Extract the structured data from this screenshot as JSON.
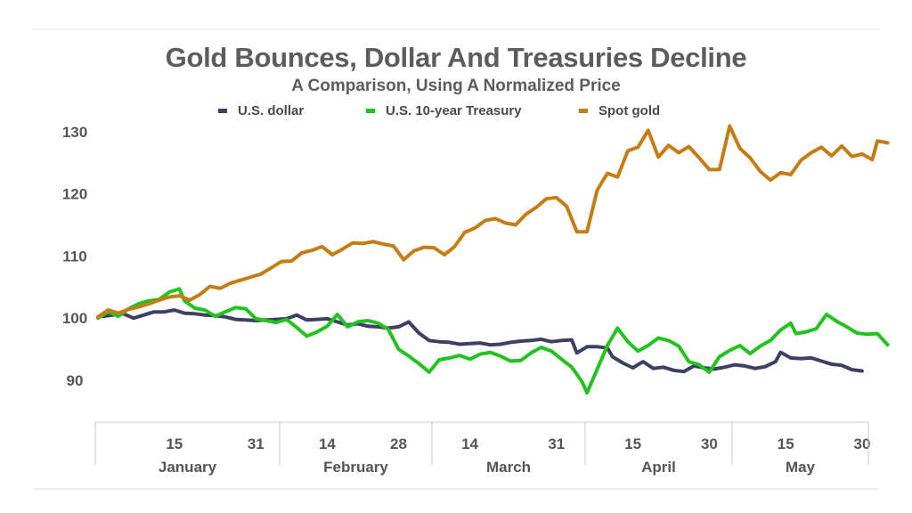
{
  "chart_data": {
    "type": "line",
    "title": "Gold Bounces, Dollar And Treasuries Decline",
    "subtitle": "A Comparison, Using A Normalized Price",
    "ylim": [
      85,
      132
    ],
    "yticks": [
      90,
      100,
      110,
      120,
      130
    ],
    "x_domain_days": [
      0,
      150
    ],
    "x_ticks": [
      {
        "label": "15",
        "day": 15
      },
      {
        "label": "31",
        "day": 31
      },
      {
        "label": "14",
        "day": 45
      },
      {
        "label": "28",
        "day": 59
      },
      {
        "label": "14",
        "day": 73
      },
      {
        "label": "31",
        "day": 90
      },
      {
        "label": "15",
        "day": 105
      },
      {
        "label": "30",
        "day": 120
      },
      {
        "label": "15",
        "day": 135
      },
      {
        "label": "30",
        "day": 150
      }
    ],
    "months": [
      {
        "label": "January",
        "start": 0,
        "end": 31
      },
      {
        "label": "February",
        "start": 31,
        "end": 59
      },
      {
        "label": "March",
        "start": 59,
        "end": 90
      },
      {
        "label": "April",
        "start": 90,
        "end": 120
      },
      {
        "label": "May",
        "start": 120,
        "end": 151
      }
    ],
    "legend_position": "top-center",
    "grid": false,
    "series": [
      {
        "name": "U.S. dollar",
        "color": "#3d3f63",
        "points": [
          [
            1,
            100.3
          ],
          [
            3,
            100.5
          ],
          [
            5,
            100.7
          ],
          [
            7,
            100.0
          ],
          [
            9,
            100.5
          ],
          [
            11,
            101.0
          ],
          [
            13,
            101.0
          ],
          [
            15,
            101.3
          ],
          [
            17,
            100.8
          ],
          [
            19,
            100.7
          ],
          [
            21,
            100.5
          ],
          [
            23,
            100.4
          ],
          [
            25,
            100.2
          ],
          [
            27,
            99.8
          ],
          [
            29,
            99.7
          ],
          [
            31,
            99.6
          ],
          [
            33,
            99.7
          ],
          [
            35,
            99.8
          ],
          [
            37,
            99.9
          ],
          [
            39,
            100.5
          ],
          [
            41,
            99.7
          ],
          [
            43,
            99.8
          ],
          [
            45,
            99.9
          ],
          [
            47,
            99.4
          ],
          [
            49,
            98.9
          ],
          [
            51,
            99.1
          ],
          [
            53,
            98.7
          ],
          [
            55,
            98.6
          ],
          [
            57,
            98.4
          ],
          [
            59,
            98.6
          ],
          [
            61,
            99.4
          ],
          [
            63,
            97.6
          ],
          [
            65,
            96.4
          ],
          [
            67,
            96.2
          ],
          [
            69,
            96.1
          ],
          [
            71,
            95.8
          ],
          [
            73,
            95.9
          ],
          [
            75,
            96.0
          ],
          [
            77,
            95.7
          ],
          [
            79,
            95.8
          ],
          [
            81,
            96.1
          ],
          [
            83,
            96.3
          ],
          [
            85,
            96.4
          ],
          [
            87,
            96.6
          ],
          [
            89,
            96.2
          ],
          [
            91,
            96.4
          ],
          [
            93,
            96.5
          ],
          [
            94,
            94.4
          ],
          [
            96,
            95.4
          ],
          [
            98,
            95.4
          ],
          [
            100,
            95.2
          ],
          [
            101,
            93.8
          ],
          [
            103,
            92.8
          ],
          [
            105,
            92.0
          ],
          [
            107,
            93.0
          ],
          [
            109,
            91.9
          ],
          [
            111,
            92.1
          ],
          [
            113,
            91.6
          ],
          [
            115,
            91.4
          ],
          [
            117,
            92.3
          ],
          [
            119,
            92.0
          ],
          [
            121,
            91.8
          ],
          [
            123,
            92.1
          ],
          [
            125,
            92.5
          ],
          [
            127,
            92.3
          ],
          [
            129,
            91.9
          ],
          [
            131,
            92.2
          ],
          [
            133,
            93.0
          ],
          [
            134,
            94.5
          ],
          [
            136,
            93.6
          ],
          [
            138,
            93.5
          ],
          [
            140,
            93.6
          ],
          [
            142,
            93.1
          ],
          [
            144,
            92.6
          ],
          [
            146,
            92.4
          ],
          [
            148,
            91.7
          ],
          [
            150,
            91.5
          ]
        ]
      },
      {
        "name": "U.S. 10-year Treasury",
        "color": "#22c21f",
        "points": [
          [
            0,
            100.0
          ],
          [
            2,
            101.0
          ],
          [
            4,
            100.3
          ],
          [
            6,
            101.5
          ],
          [
            8,
            102.3
          ],
          [
            10,
            102.8
          ],
          [
            12,
            103.0
          ],
          [
            14,
            104.2
          ],
          [
            16,
            104.7
          ],
          [
            17,
            102.8
          ],
          [
            19,
            101.6
          ],
          [
            21,
            101.3
          ],
          [
            23,
            100.3
          ],
          [
            25,
            101.0
          ],
          [
            27,
            101.7
          ],
          [
            29,
            101.5
          ],
          [
            31,
            99.9
          ],
          [
            33,
            99.6
          ],
          [
            35,
            99.3
          ],
          [
            37,
            99.8
          ],
          [
            39,
            98.5
          ],
          [
            41,
            97.1
          ],
          [
            43,
            97.8
          ],
          [
            45,
            98.7
          ],
          [
            47,
            100.6
          ],
          [
            49,
            98.6
          ],
          [
            51,
            99.4
          ],
          [
            53,
            99.6
          ],
          [
            55,
            99.2
          ],
          [
            57,
            98.2
          ],
          [
            59,
            95.0
          ],
          [
            61,
            93.9
          ],
          [
            63,
            92.7
          ],
          [
            65,
            91.3
          ],
          [
            67,
            93.3
          ],
          [
            69,
            93.6
          ],
          [
            71,
            94.0
          ],
          [
            73,
            93.4
          ],
          [
            75,
            94.2
          ],
          [
            77,
            94.5
          ],
          [
            79,
            93.9
          ],
          [
            81,
            93.1
          ],
          [
            83,
            93.2
          ],
          [
            85,
            94.4
          ],
          [
            87,
            95.3
          ],
          [
            89,
            94.7
          ],
          [
            91,
            93.4
          ],
          [
            93,
            92.1
          ],
          [
            95,
            89.8
          ],
          [
            96,
            88.0
          ],
          [
            98,
            91.8
          ],
          [
            100,
            95.6
          ],
          [
            102,
            98.4
          ],
          [
            104,
            96.2
          ],
          [
            106,
            94.7
          ],
          [
            108,
            95.6
          ],
          [
            110,
            96.8
          ],
          [
            112,
            96.4
          ],
          [
            114,
            95.5
          ],
          [
            116,
            93.0
          ],
          [
            118,
            92.5
          ],
          [
            120,
            91.3
          ],
          [
            122,
            93.8
          ],
          [
            124,
            94.8
          ],
          [
            126,
            95.6
          ],
          [
            128,
            94.3
          ],
          [
            130,
            95.5
          ],
          [
            132,
            96.4
          ],
          [
            134,
            98.1
          ],
          [
            136,
            99.2
          ],
          [
            137,
            97.5
          ],
          [
            139,
            97.8
          ],
          [
            141,
            98.3
          ],
          [
            143,
            100.6
          ],
          [
            145,
            99.5
          ],
          [
            147,
            98.6
          ],
          [
            149,
            97.6
          ],
          [
            151,
            97.4
          ],
          [
            153,
            97.5
          ],
          [
            155,
            95.7
          ]
        ]
      },
      {
        "name": "Spot gold",
        "color": "#c47d12",
        "points": [
          [
            0,
            100.2
          ],
          [
            2,
            101.3
          ],
          [
            4,
            100.8
          ],
          [
            6,
            101.4
          ],
          [
            8,
            101.8
          ],
          [
            10,
            102.3
          ],
          [
            12,
            102.9
          ],
          [
            14,
            103.4
          ],
          [
            16,
            103.6
          ],
          [
            18,
            102.9
          ],
          [
            20,
            103.8
          ],
          [
            22,
            105.1
          ],
          [
            24,
            104.8
          ],
          [
            26,
            105.6
          ],
          [
            28,
            106.1
          ],
          [
            30,
            106.6
          ],
          [
            32,
            107.1
          ],
          [
            34,
            108.1
          ],
          [
            36,
            109.1
          ],
          [
            38,
            109.2
          ],
          [
            40,
            110.5
          ],
          [
            42,
            110.9
          ],
          [
            44,
            111.5
          ],
          [
            46,
            110.2
          ],
          [
            48,
            111.1
          ],
          [
            50,
            112.1
          ],
          [
            52,
            112.0
          ],
          [
            54,
            112.3
          ],
          [
            56,
            111.9
          ],
          [
            58,
            111.6
          ],
          [
            60,
            109.4
          ],
          [
            62,
            110.8
          ],
          [
            64,
            111.4
          ],
          [
            66,
            111.3
          ],
          [
            68,
            110.2
          ],
          [
            70,
            111.5
          ],
          [
            72,
            113.8
          ],
          [
            74,
            114.5
          ],
          [
            76,
            115.7
          ],
          [
            78,
            116.0
          ],
          [
            80,
            115.3
          ],
          [
            82,
            115.0
          ],
          [
            84,
            116.7
          ],
          [
            86,
            117.8
          ],
          [
            88,
            119.2
          ],
          [
            90,
            119.4
          ],
          [
            92,
            118.0
          ],
          [
            94,
            113.9
          ],
          [
            96,
            113.9
          ],
          [
            98,
            120.6
          ],
          [
            100,
            123.3
          ],
          [
            102,
            122.7
          ],
          [
            104,
            126.9
          ],
          [
            106,
            127.5
          ],
          [
            108,
            130.2
          ],
          [
            110,
            125.9
          ],
          [
            112,
            127.8
          ],
          [
            114,
            126.6
          ],
          [
            116,
            127.6
          ],
          [
            118,
            125.8
          ],
          [
            120,
            123.9
          ],
          [
            122,
            123.9
          ],
          [
            124,
            130.9
          ],
          [
            126,
            127.3
          ],
          [
            128,
            125.8
          ],
          [
            130,
            123.6
          ],
          [
            132,
            122.2
          ],
          [
            134,
            123.4
          ],
          [
            136,
            123.1
          ],
          [
            138,
            125.4
          ],
          [
            140,
            126.6
          ],
          [
            142,
            127.5
          ],
          [
            144,
            126.1
          ],
          [
            146,
            127.7
          ],
          [
            148,
            126.0
          ],
          [
            150,
            126.4
          ],
          [
            152,
            125.5
          ],
          [
            153,
            128.5
          ],
          [
            155,
            128.2
          ]
        ]
      }
    ]
  }
}
